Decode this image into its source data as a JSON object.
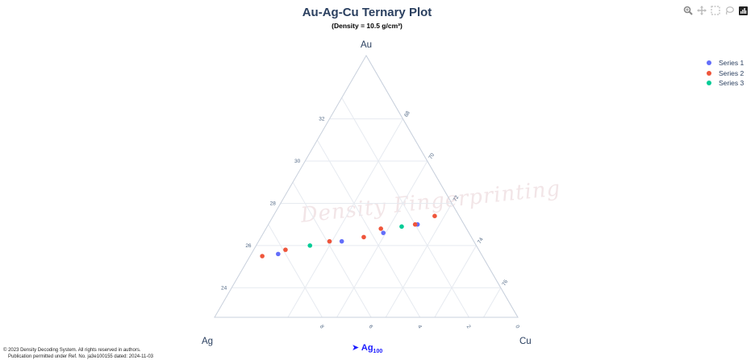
{
  "chart_data": {
    "type": "scatter",
    "subtype": "ternary",
    "title": "Au-Ag-Cu Ternary Plot",
    "subtitle": "(Density = 10.5 g/cm³)",
    "axes": {
      "a": {
        "title": "Au",
        "ticks": [
          "24",
          "26",
          "28",
          "30",
          "32"
        ]
      },
      "b": {
        "title": "Ag",
        "ticks": [
          "8",
          "6",
          "4",
          "2",
          "0"
        ]
      },
      "c": {
        "title": "Cu",
        "ticks": [
          "68",
          "70",
          "72",
          "74",
          "76"
        ]
      }
    },
    "ag_title": "Ag",
    "ag_sub": "100",
    "legend_position": "top-right",
    "series": [
      {
        "name": "Series 1",
        "color": "#636efa",
        "points": [
          [
            25.6,
            8.3,
            66.1
          ],
          [
            26.2,
            5.4,
            68.4
          ],
          [
            26.6,
            3.5,
            69.9
          ],
          [
            27.0,
            1.9,
            71.1
          ]
        ]
      },
      {
        "name": "Series 2",
        "color": "#ef553b",
        "points": [
          [
            25.5,
            9.0,
            65.5
          ],
          [
            25.8,
            7.9,
            66.3
          ],
          [
            26.2,
            5.9,
            67.9
          ],
          [
            26.4,
            4.4,
            69.2
          ],
          [
            26.8,
            3.5,
            69.7
          ],
          [
            27.0,
            2.0,
            71.0
          ],
          [
            27.4,
            1.0,
            71.6
          ]
        ]
      },
      {
        "name": "Series 3",
        "color": "#00cc96",
        "points": [
          [
            26.0,
            6.8,
            67.2
          ],
          [
            26.9,
            2.6,
            70.5
          ]
        ]
      }
    ]
  },
  "watermark": "Density Fingerprinting",
  "footer": {
    "line1": "© 2023 Density Decoding System. All rights reserved in authors.",
    "line2": "Publication permitted under Ref. No. ja3e100155 dated: 2024-11-03"
  },
  "modebar": [
    "zoom-icon",
    "pan-icon",
    "box-select-icon",
    "lasso-icon",
    "plotly-logo-icon"
  ]
}
